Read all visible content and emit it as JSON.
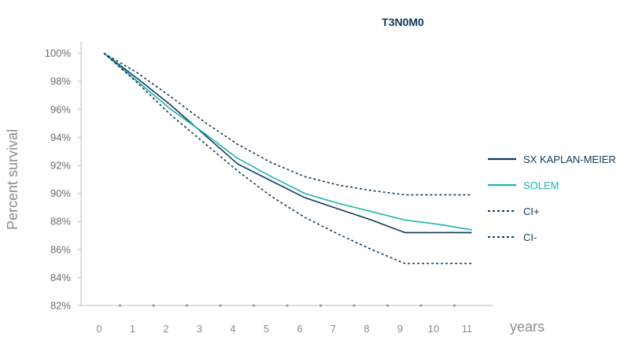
{
  "chart_data": {
    "type": "line",
    "title": "T3N0M0",
    "ylabel": "Percent survival",
    "xlabel": "years",
    "x_ticks": [
      0,
      1,
      2,
      3,
      4,
      5,
      6,
      7,
      8,
      9,
      10,
      11
    ],
    "x_tick_labels": [
      "0",
      "1",
      "2",
      "3",
      "4",
      "5",
      "6",
      "7",
      "8",
      "9",
      "10",
      "11"
    ],
    "y_ticks": [
      82,
      84,
      86,
      88,
      90,
      92,
      94,
      96,
      98,
      100
    ],
    "y_tick_labels": [
      "82%",
      "84%",
      "86%",
      "88%",
      "90%",
      "92%",
      "94%",
      "96%",
      "98%",
      "100%"
    ],
    "xlim": [
      0,
      11
    ],
    "ylim": [
      82,
      100
    ],
    "legend_position": "right",
    "series": [
      {
        "name": "SX KAPLAN-MEIER",
        "color": "#0e3b5c",
        "style": "solid",
        "x": [
          0,
          1,
          2,
          3,
          4,
          5,
          6,
          7,
          8,
          9,
          10,
          11
        ],
        "y": [
          100,
          98.2,
          96.3,
          94.2,
          92.1,
          90.9,
          89.7,
          88.9,
          88.1,
          87.2,
          87.2,
          87.2
        ]
      },
      {
        "name": "SOLEM",
        "color": "#1fb3aa",
        "style": "solid",
        "x": [
          0,
          1,
          2,
          3,
          4,
          5,
          6,
          7,
          8,
          9,
          10,
          11
        ],
        "y": [
          100,
          98.0,
          96.0,
          94.3,
          92.5,
          91.2,
          90.0,
          89.3,
          88.7,
          88.1,
          87.8,
          87.4
        ]
      },
      {
        "name": "CI+",
        "color": "#0e3b5c",
        "style": "dashed",
        "x": [
          0,
          1,
          2,
          3,
          4,
          5,
          6,
          7,
          8,
          9,
          10,
          11
        ],
        "y": [
          100,
          98.6,
          96.9,
          95.1,
          93.5,
          92.2,
          91.2,
          90.6,
          90.2,
          89.9,
          89.9,
          89.9
        ]
      },
      {
        "name": "CI-",
        "color": "#0e3b5c",
        "style": "dashed",
        "x": [
          0,
          1,
          2,
          3,
          4,
          5,
          6,
          7,
          8,
          9,
          10,
          11
        ],
        "y": [
          100,
          97.9,
          95.6,
          93.6,
          91.6,
          89.8,
          88.3,
          87.1,
          86.0,
          85.0,
          85.0,
          85.0
        ]
      }
    ]
  }
}
